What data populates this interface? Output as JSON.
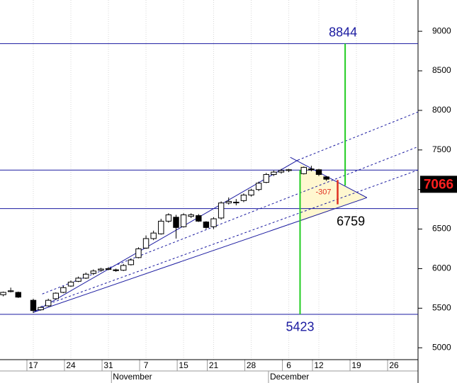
{
  "chart_data": {
    "type": "candlestick",
    "x": [
      -4,
      -3,
      -2,
      0,
      1,
      2,
      3,
      4,
      5,
      6,
      7,
      8,
      9,
      10,
      11,
      12,
      13,
      14,
      15,
      16,
      17,
      18,
      19,
      20,
      21,
      22,
      23,
      24,
      25,
      26,
      27,
      28,
      29,
      30,
      31,
      32,
      33,
      34,
      36,
      37,
      38,
      39
    ],
    "open": [
      5670,
      5710,
      5700,
      5600,
      5480,
      5530,
      5620,
      5700,
      5780,
      5840,
      5880,
      5940,
      5980,
      5990,
      5985,
      5980,
      6050,
      6140,
      6260,
      6380,
      6440,
      6600,
      6650,
      6530,
      6660,
      6670,
      6590,
      6530,
      6640,
      6830,
      6840,
      6860,
      6930,
      7000,
      7090,
      7190,
      7220,
      7240,
      7200,
      7260,
      7250,
      7160
    ],
    "high": [
      5710,
      5760,
      5710,
      5620,
      5520,
      5620,
      5700,
      5780,
      5850,
      5900,
      5950,
      5990,
      6010,
      6020,
      6000,
      6060,
      6130,
      6270,
      6420,
      6480,
      6630,
      6700,
      6680,
      6700,
      6700,
      6690,
      6600,
      6650,
      6850,
      6900,
      6880,
      6950,
      7010,
      7100,
      7210,
      7240,
      7260,
      7260,
      7290,
      7300,
      7260,
      7170
    ],
    "low": [
      5650,
      5700,
      5630,
      5440,
      5470,
      5520,
      5610,
      5690,
      5770,
      5830,
      5870,
      5920,
      5960,
      5980,
      5960,
      5970,
      6040,
      6130,
      6250,
      6360,
      6430,
      6580,
      6380,
      6520,
      6640,
      6590,
      6500,
      6500,
      6620,
      6810,
      6800,
      6840,
      6910,
      6980,
      7080,
      7170,
      7200,
      7220,
      7190,
      7230,
      7170,
      7110
    ],
    "close": [
      5700,
      5720,
      5640,
      5470,
      5510,
      5600,
      5690,
      5760,
      5830,
      5880,
      5930,
      5970,
      5995,
      6000,
      5975,
      6040,
      6110,
      6250,
      6380,
      6450,
      6600,
      6680,
      6520,
      6680,
      6680,
      6600,
      6520,
      6630,
      6830,
      6850,
      6840,
      6930,
      6990,
      7080,
      7190,
      7220,
      7240,
      7250,
      7280,
      7250,
      7190,
      7130
    ],
    "xlim": [
      -4.43,
      51.2
    ],
    "ylim": [
      4850,
      9395
    ],
    "xticks": [
      {
        "value": 0,
        "label": "17"
      },
      {
        "value": 5,
        "label": "24"
      },
      {
        "value": 10,
        "label": "31"
      },
      {
        "value": 15,
        "label": "7"
      },
      {
        "value": 20,
        "label": "15"
      },
      {
        "value": 24,
        "label": "21"
      },
      {
        "value": 29,
        "label": "28"
      },
      {
        "value": 34,
        "label": "6"
      },
      {
        "value": 38,
        "label": "12"
      },
      {
        "value": 43,
        "label": "19"
      },
      {
        "value": 48,
        "label": "26"
      }
    ],
    "months": [
      {
        "value": 10.4,
        "label": "November"
      },
      {
        "value": 31.3,
        "label": "December"
      }
    ],
    "yticks": [
      5000,
      5500,
      6000,
      6500,
      7000,
      7500,
      8000,
      8500,
      9000
    ],
    "grid": "x",
    "levels": [
      8844,
      7245,
      6759,
      5423
    ],
    "level_color": "#1a1aa0",
    "projections": [
      {
        "x": 35.5,
        "from": 5423,
        "to": 7245
      },
      {
        "x": 41.5,
        "from": 7050,
        "to": 8844
      }
    ],
    "projection_color": "#22cc22",
    "trendlines": [
      {
        "x1": 0,
        "y1": 5447,
        "x2": 35.2,
        "y2": 7371,
        "dashed": false
      },
      {
        "x1": 0,
        "y1": 5447,
        "x2": 44.4,
        "y2": 6897,
        "dashed": false
      },
      {
        "x1": 34.2,
        "y1": 7407,
        "x2": 44.4,
        "y2": 6897,
        "dashed": false
      },
      {
        "x1": 1,
        "y1": 5519,
        "x2": 51.2,
        "y2": 7246,
        "dashed": true
      },
      {
        "x1": 1.2,
        "y1": 5680,
        "x2": 51.2,
        "y2": 7541,
        "dashed": true
      },
      {
        "x1": 35.2,
        "y1": 7371,
        "x2": 51.2,
        "y2": 7980,
        "dashed": true
      }
    ],
    "zone": [
      [
        35.5,
        7320
      ],
      [
        44.4,
        6897
      ],
      [
        35.5,
        6595
      ]
    ],
    "zone_color": "#fff7d0",
    "difference": {
      "x": 40.5,
      "from": 7120,
      "value": -307,
      "color": "#e03020"
    },
    "last_price": 7066,
    "last_price_color": "#ff2020"
  }
}
